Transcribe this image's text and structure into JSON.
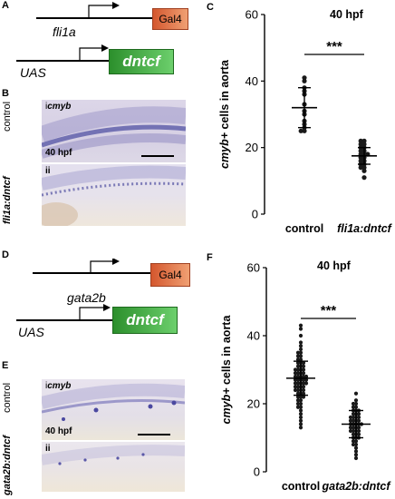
{
  "panels": {
    "A": {
      "letter": "A",
      "driver": {
        "gene": "fli1a",
        "box": "Gal4",
        "box_color": "#e06a3c"
      },
      "responder": {
        "gene": "UAS",
        "box": "dntcf",
        "box_color": "#3aa63a"
      }
    },
    "B": {
      "letter": "B",
      "top": {
        "roman": "i",
        "probe": "cmyb",
        "genotype": "control",
        "stage": "40 hpf"
      },
      "bottom": {
        "roman": "ii",
        "genotype": "fli1a:dntcf"
      }
    },
    "C": {
      "letter": "C"
    },
    "D": {
      "letter": "D",
      "driver": {
        "gene": "gata2b",
        "box": "Gal4",
        "box_color": "#e06a3c"
      },
      "responder": {
        "gene": "UAS",
        "box": "dntcf",
        "box_color": "#3aa63a"
      }
    },
    "E": {
      "letter": "E",
      "top": {
        "roman": "i",
        "probe": "cmyb",
        "genotype": "control",
        "stage": "40 hpf"
      },
      "bottom": {
        "roman": "ii",
        "genotype": "gata2b:dntcf"
      }
    },
    "F": {
      "letter": "F"
    }
  },
  "chart_data": [
    {
      "type": "scatter",
      "panel": "C",
      "title": "40 hpf",
      "ylabel": "cmyb+ cells in aorta",
      "ylim": [
        0,
        60
      ],
      "yticks": [
        0,
        20,
        40,
        60
      ],
      "categories": [
        "control",
        "fli1a:dntcf"
      ],
      "significance": "***",
      "series": [
        {
          "category": "control",
          "mean": 32,
          "sd": 6,
          "values": [
            41,
            40,
            38,
            37,
            36,
            33,
            31,
            30,
            28,
            27,
            26,
            25,
            25
          ]
        },
        {
          "category": "fli1a:dntcf",
          "mean": 17.5,
          "sd": 2.5,
          "values": [
            22,
            22,
            21,
            21,
            20,
            20,
            19,
            19,
            18,
            18,
            18,
            17,
            17,
            16,
            16,
            15,
            15,
            14,
            14,
            13,
            11
          ]
        }
      ]
    },
    {
      "type": "scatter",
      "panel": "F",
      "title": "40 hpf",
      "ylabel": "cmyb+ cells in aorta",
      "ylim": [
        0,
        60
      ],
      "yticks": [
        0,
        20,
        40,
        60
      ],
      "categories": [
        "control",
        "gata2b:dntcf"
      ],
      "significance": "***",
      "series": [
        {
          "category": "control",
          "mean": 27.5,
          "sd": 5,
          "values": [
            43,
            42,
            40,
            38,
            37,
            36,
            35,
            35,
            34,
            34,
            33,
            33,
            32,
            32,
            32,
            31,
            31,
            31,
            30,
            30,
            30,
            30,
            29,
            29,
            29,
            29,
            28,
            28,
            28,
            28,
            28,
            27,
            27,
            27,
            27,
            27,
            26,
            26,
            26,
            26,
            26,
            25,
            25,
            25,
            25,
            24,
            24,
            24,
            24,
            23,
            23,
            23,
            22,
            22,
            22,
            21,
            21,
            20,
            20,
            19,
            19,
            18,
            17,
            16,
            15,
            14,
            13
          ]
        },
        {
          "category": "gata2b:dntcf",
          "mean": 14,
          "sd": 4,
          "values": [
            23,
            21,
            20,
            20,
            19,
            19,
            18,
            18,
            18,
            17,
            17,
            17,
            16,
            16,
            16,
            16,
            15,
            15,
            15,
            15,
            14,
            14,
            14,
            14,
            14,
            13,
            13,
            13,
            13,
            12,
            12,
            12,
            12,
            11,
            11,
            11,
            10,
            10,
            10,
            9,
            9,
            8,
            8,
            7,
            6,
            5,
            4
          ]
        }
      ]
    }
  ]
}
